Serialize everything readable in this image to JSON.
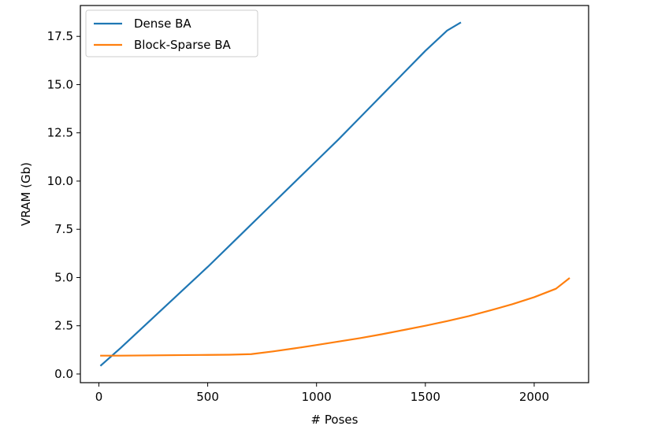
{
  "chart_data": {
    "type": "line",
    "title": "",
    "xlabel": "# Poses",
    "ylabel": "VRAM (Gb)",
    "xlim": [
      -85,
      2250
    ],
    "ylim": [
      -0.45,
      19.1
    ],
    "xticks": [
      0,
      500,
      1000,
      1500,
      2000
    ],
    "yticks": [
      0.0,
      2.5,
      5.0,
      7.5,
      10.0,
      12.5,
      15.0,
      17.5
    ],
    "xtick_labels": [
      "0",
      "500",
      "1000",
      "1500",
      "2000"
    ],
    "ytick_labels": [
      "0.0",
      "2.5",
      "5.0",
      "7.5",
      "10.0",
      "12.5",
      "15.0",
      "17.5"
    ],
    "grid": false,
    "legend_position": "top-left",
    "series": [
      {
        "name": "Dense BA",
        "color": "#1f77b4",
        "x": [
          10,
          100,
          200,
          300,
          400,
          500,
          600,
          700,
          800,
          900,
          1000,
          1100,
          1200,
          1300,
          1400,
          1500,
          1600,
          1660
        ],
        "y": [
          0.45,
          1.35,
          2.4,
          3.45,
          4.5,
          5.55,
          6.65,
          7.75,
          8.85,
          9.95,
          11.05,
          12.15,
          13.3,
          14.45,
          15.6,
          16.75,
          17.8,
          18.2
        ]
      },
      {
        "name": "Block-Sparse BA",
        "color": "#ff7f0e",
        "x": [
          10,
          100,
          200,
          300,
          400,
          500,
          600,
          700,
          800,
          900,
          1000,
          1100,
          1200,
          1300,
          1400,
          1500,
          1600,
          1700,
          1800,
          1900,
          2000,
          2100,
          2160
        ],
        "y": [
          0.95,
          0.95,
          0.96,
          0.97,
          0.98,
          0.99,
          1.0,
          1.03,
          1.17,
          1.33,
          1.5,
          1.68,
          1.86,
          2.06,
          2.28,
          2.5,
          2.74,
          3.0,
          3.3,
          3.62,
          3.98,
          4.42,
          4.95
        ]
      }
    ]
  }
}
